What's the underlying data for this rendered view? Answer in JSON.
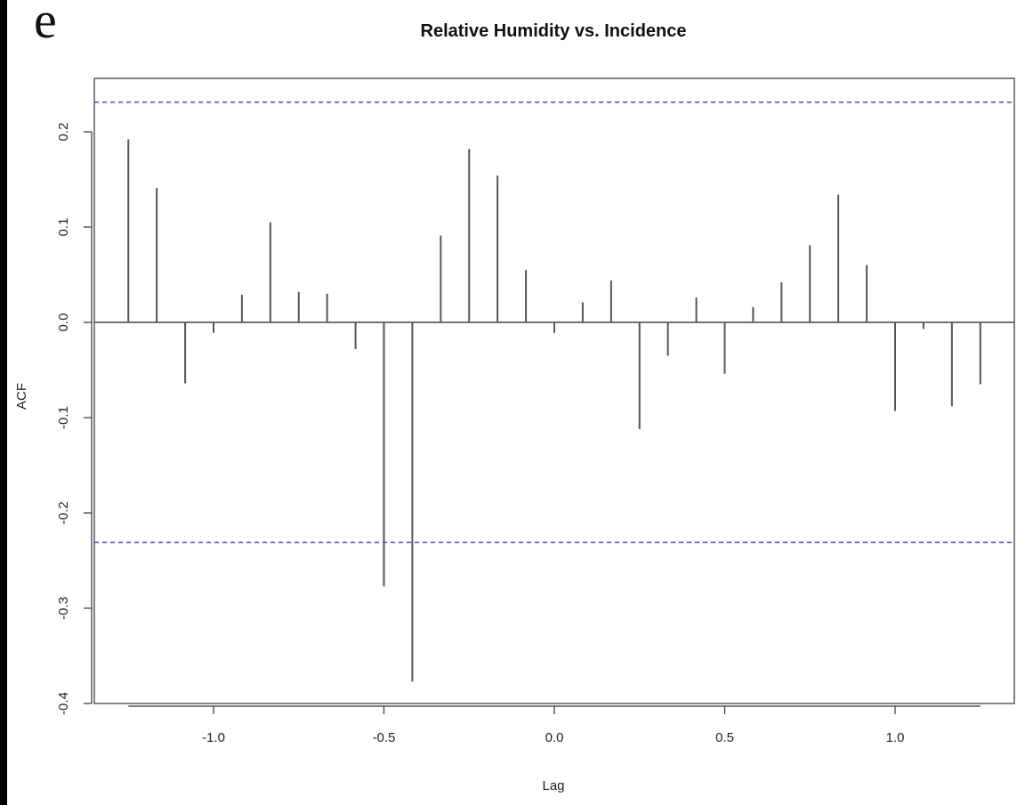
{
  "panel_label": "e",
  "chart_data": {
    "type": "bar",
    "style": "acf-spikes",
    "title": "Relative Humidity vs. Incidence",
    "xlabel": "Lag",
    "ylabel": "ACF",
    "xlim": [
      -1.25,
      1.25
    ],
    "ylim": [
      -0.4,
      0.2
    ],
    "x_ticks": [
      {
        "value": -1.0,
        "label": "-1.0"
      },
      {
        "value": -0.5,
        "label": "-0.5"
      },
      {
        "value": 0.0,
        "label": "0.0"
      },
      {
        "value": 0.5,
        "label": "0.5"
      },
      {
        "value": 1.0,
        "label": "1.0"
      }
    ],
    "y_ticks": [
      {
        "value": -0.4,
        "label": "-0.4"
      },
      {
        "value": -0.3,
        "label": "-0.3"
      },
      {
        "value": -0.2,
        "label": "-0.2"
      },
      {
        "value": -0.1,
        "label": "-0.1"
      },
      {
        "value": 0.0,
        "label": "0.0"
      },
      {
        "value": 0.1,
        "label": "0.1"
      },
      {
        "value": 0.2,
        "label": "0.2"
      }
    ],
    "confidence_bounds": [
      0.231,
      -0.231
    ],
    "confidence_color": "#3333cc",
    "spike_color": "#555555",
    "lags": [
      -1.25,
      -1.1667,
      -1.0833,
      -1.0,
      -0.9167,
      -0.8333,
      -0.75,
      -0.6667,
      -0.5833,
      -0.5,
      -0.4167,
      -0.3333,
      -0.25,
      -0.1667,
      -0.0833,
      0.0,
      0.0833,
      0.1667,
      0.25,
      0.3333,
      0.4167,
      0.5,
      0.5833,
      0.6667,
      0.75,
      0.8333,
      0.9167,
      1.0,
      1.0833,
      1.1667,
      1.25
    ],
    "values": [
      0.192,
      0.141,
      -0.064,
      -0.011,
      0.029,
      0.105,
      0.032,
      0.03,
      -0.028,
      -0.277,
      -0.377,
      0.091,
      0.182,
      0.154,
      0.055,
      -0.011,
      0.021,
      0.044,
      -0.112,
      -0.035,
      0.026,
      -0.054,
      0.016,
      0.042,
      0.081,
      0.134,
      0.06,
      -0.093,
      -0.007,
      -0.088,
      -0.065
    ],
    "grid": false,
    "legend": "none"
  }
}
